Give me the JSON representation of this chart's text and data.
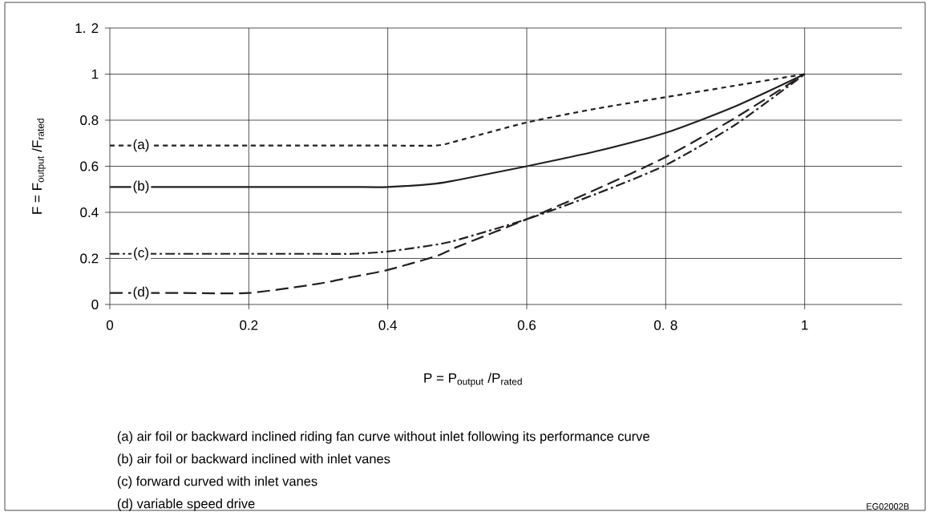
{
  "chart_data": {
    "type": "line",
    "xlabel": "P = P$_{output}$ /P$_{rated}$",
    "ylabel": "F = F$_{output}$ /F$_{rated}$",
    "x": [
      0,
      0.1,
      0.2,
      0.3,
      0.35,
      0.4,
      0.47,
      0.5,
      0.6,
      0.7,
      0.8,
      0.9,
      1.0
    ],
    "series": [
      {
        "name": "(a)",
        "color": "#231f20",
        "line_style": "dashed",
        "values": [
          0.69,
          0.69,
          0.69,
          0.69,
          0.69,
          0.69,
          0.69,
          0.71,
          0.79,
          0.85,
          0.9,
          0.95,
          1.0
        ]
      },
      {
        "name": "(b)",
        "color": "#231f20",
        "line_style": "solid",
        "values": [
          0.51,
          0.51,
          0.51,
          0.51,
          0.51,
          0.51,
          0.525,
          0.54,
          0.6,
          0.665,
          0.745,
          0.86,
          1.0
        ]
      },
      {
        "name": "(c)",
        "color": "#231f20",
        "line_style": "dashdot",
        "values": [
          0.22,
          0.22,
          0.22,
          0.22,
          0.22,
          0.23,
          0.26,
          0.28,
          0.37,
          0.48,
          0.605,
          0.78,
          1.0
        ]
      },
      {
        "name": "(d)",
        "color": "#231f20",
        "line_style": "long dashed",
        "values": [
          0.05,
          0.05,
          0.05,
          0.09,
          0.12,
          0.15,
          0.21,
          0.25,
          0.37,
          0.5,
          0.64,
          0.81,
          1.0
        ]
      }
    ],
    "xlim": [
      0,
      1.14
    ],
    "ylim": [
      0,
      1.2
    ],
    "xticks": [
      0,
      0.2,
      0.4,
      0.6,
      {
        "value": 0.8,
        "label": "0. 8"
      },
      1
    ],
    "yticks": [
      0,
      0.2,
      0.4,
      0.6,
      0.8,
      1,
      {
        "value": 1.2,
        "label": "1. 2"
      }
    ],
    "grid": true,
    "annotations": [
      "(a) air foil or backward inclined riding fan curve without inlet following its performance curve",
      "(b) air foil or backward inclined with inlet vanes",
      "(c) forward curved with inlet vanes",
      "(d) variable speed drive",
      "EG02002B"
    ]
  }
}
